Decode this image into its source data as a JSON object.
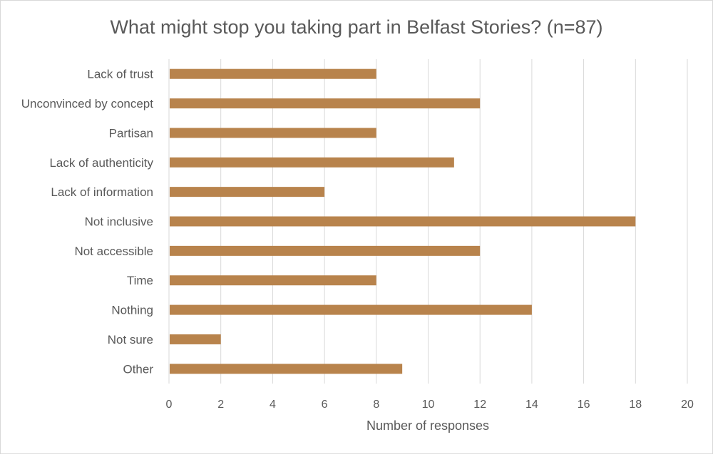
{
  "chart_data": {
    "type": "bar",
    "orientation": "horizontal",
    "title": "What might stop you taking part in Belfast Stories? (n=87)",
    "xlabel": "Number of responses",
    "ylabel": "",
    "categories": [
      "Lack of trust",
      "Unconvinced by concept",
      "Partisan",
      "Lack of authenticity",
      "Lack of information",
      "Not inclusive",
      "Not accessible",
      "Time",
      "Nothing",
      "Not sure",
      "Other"
    ],
    "values": [
      8,
      12,
      8,
      11,
      6,
      18,
      12,
      8,
      14,
      2,
      9
    ],
    "xlim": [
      0,
      20
    ],
    "xticks": [
      "0",
      "2",
      "4",
      "6",
      "8",
      "10",
      "12",
      "14",
      "16",
      "18",
      "20"
    ],
    "grid": "vertical",
    "legend": "none",
    "bar_color": "#b8834c",
    "grid_color": "#d9d9d9",
    "text_color": "#595959"
  }
}
